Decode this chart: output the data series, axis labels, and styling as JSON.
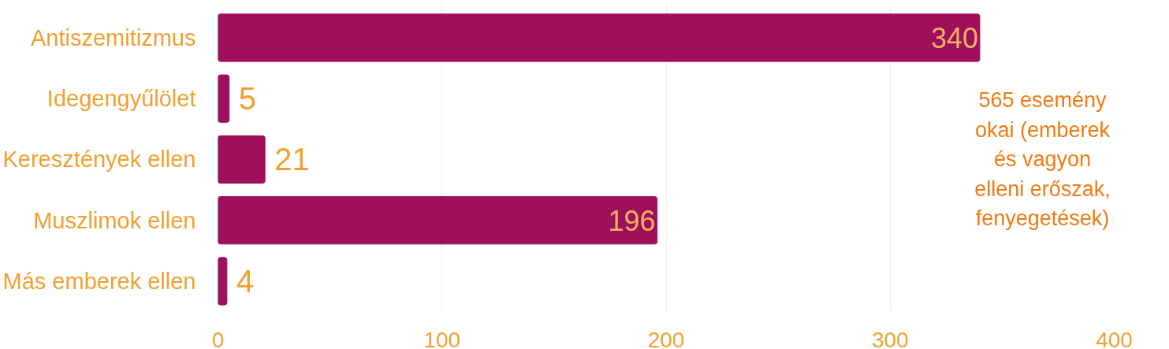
{
  "chart_data": {
    "type": "bar",
    "orientation": "horizontal",
    "categories": [
      "Antiszemitizmus",
      "Idegengyűlölet",
      "Keresztények ellen",
      "Muszlimok ellen",
      "Más emberek ellen"
    ],
    "values": [
      340,
      5,
      21,
      196,
      4
    ],
    "color": "#9e0f5c",
    "xlim": [
      0,
      400
    ],
    "xticks": [
      0,
      100,
      200,
      300,
      400
    ],
    "grid": "x",
    "data_labels": true,
    "annotations": [
      "565 esemény\nokai (emberek\nés vagyon\nelleni erőszak,\nfenyegetések)"
    ]
  }
}
